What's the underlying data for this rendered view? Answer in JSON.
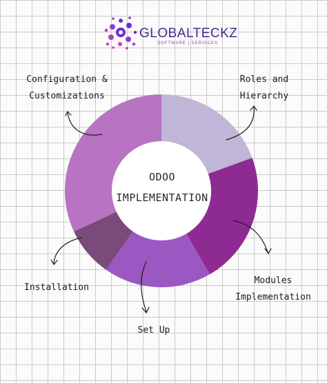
{
  "brand": {
    "name": "GLOBALTECKZ",
    "tagline": "SOFTWARE | SERVICES",
    "logo_icon": "dot-network-logo",
    "logo_colors": [
      "#6a2fd1",
      "#8d3bd6",
      "#b03cc7",
      "#d13f9e"
    ]
  },
  "center": {
    "line1": "ODOO",
    "line2": "IMPLEMENTATION"
  },
  "segments": [
    {
      "id": "roles",
      "label_lines": [
        "Roles and",
        "Hierarchy"
      ],
      "color": "#c1b5d8",
      "start_deg": 0,
      "end_deg": 70
    },
    {
      "id": "modules",
      "label_lines": [
        "Modules",
        "Implementation"
      ],
      "color": "#8e2b93",
      "start_deg": 70,
      "end_deg": 150
    },
    {
      "id": "setup",
      "label_lines": [
        "Set Up"
      ],
      "color": "#9b57c2",
      "start_deg": 150,
      "end_deg": 215
    },
    {
      "id": "installation",
      "label_lines": [
        "Installation"
      ],
      "color": "#7a4b7a",
      "start_deg": 215,
      "end_deg": 245
    },
    {
      "id": "configuration",
      "label_lines": [
        "Configuration &",
        "Customizations"
      ],
      "color": "#b874c2",
      "start_deg": 245,
      "end_deg": 360
    }
  ]
}
